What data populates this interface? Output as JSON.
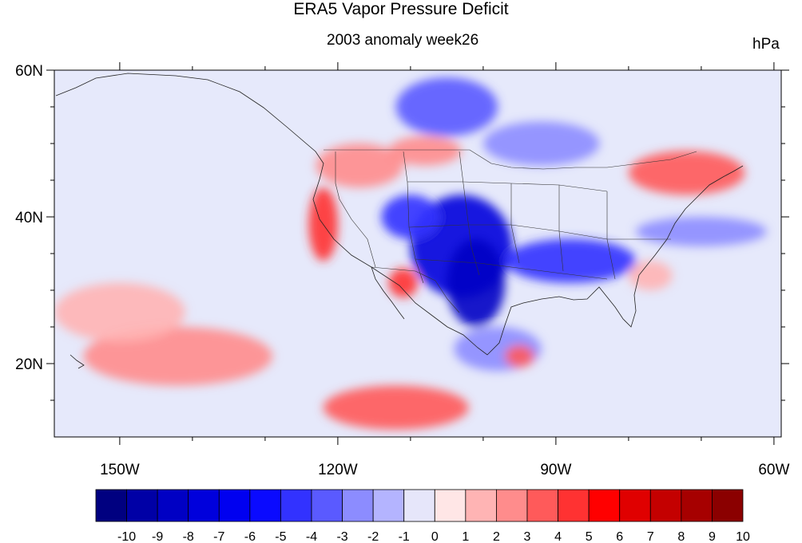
{
  "title": "ERA5 Vapor Pressure Deficit",
  "subtitle": "2003 anomaly week26",
  "units": "hPa",
  "map": {
    "lon_range": [
      -159,
      -59
    ],
    "lat_range": [
      10,
      60
    ],
    "lat_ticks": [
      {
        "value": 60,
        "label": "60N"
      },
      {
        "value": 40,
        "label": "40N"
      },
      {
        "value": 20,
        "label": "20N"
      }
    ],
    "lon_ticks": [
      {
        "value": -150,
        "label": "150W"
      },
      {
        "value": -120,
        "label": "120W"
      },
      {
        "value": -90,
        "label": "90W"
      },
      {
        "value": -60,
        "label": "60W"
      }
    ],
    "background_color": "#e6e9fb"
  },
  "colorbar": {
    "labels": [
      "-10",
      "-9",
      "-8",
      "-7",
      "-6",
      "-5",
      "-4",
      "-3",
      "-2",
      "-1",
      "0",
      "1",
      "2",
      "3",
      "4",
      "5",
      "6",
      "7",
      "8",
      "9",
      "10"
    ],
    "colors": [
      "#000080",
      "#0000a6",
      "#0000c4",
      "#0000dc",
      "#0000f0",
      "#0a0aff",
      "#3232ff",
      "#5a5aff",
      "#8c8cff",
      "#b4b4ff",
      "#e6e6fa",
      "#ffe6e6",
      "#ffb4b4",
      "#ff8c8c",
      "#ff5a5a",
      "#ff3232",
      "#ff0000",
      "#e00000",
      "#c40000",
      "#a60000",
      "#8b0000"
    ]
  },
  "anomaly_regions": [
    {
      "name": "Central US dry-negative core",
      "lon": -103,
      "lat": 36,
      "rx": 7,
      "ry": 7,
      "color": "#0000dc"
    },
    {
      "name": "Southern Plains negative",
      "lon": -101,
      "lat": 31,
      "rx": 4,
      "ry": 6,
      "color": "#0000c4"
    },
    {
      "name": "Southeast US negative",
      "lon": -88,
      "lat": 34,
      "rx": 9,
      "ry": 3,
      "color": "#3232ff"
    },
    {
      "name": "Great Basin negative",
      "lon": -110,
      "lat": 40,
      "rx": 4,
      "ry": 3,
      "color": "#3232ff"
    },
    {
      "name": "Canada negative",
      "lon": -105,
      "lat": 55,
      "rx": 7,
      "ry": 4,
      "color": "#5a5aff"
    },
    {
      "name": "Northeast Canada negative",
      "lon": -92,
      "lat": 50,
      "rx": 8,
      "ry": 3,
      "color": "#8c8cff"
    },
    {
      "name": "Mexico negative",
      "lon": -98,
      "lat": 22,
      "rx": 6,
      "ry": 3,
      "color": "#8c8cff"
    },
    {
      "name": "Atlantic negative",
      "lon": -70,
      "lat": 38,
      "rx": 9,
      "ry": 2,
      "color": "#8c8cff"
    },
    {
      "name": "California coast positive",
      "lon": -122,
      "lat": 39,
      "rx": 2,
      "ry": 5,
      "color": "#ff3232"
    },
    {
      "name": "Arizona positive",
      "lon": -111,
      "lat": 31,
      "rx": 2,
      "ry": 2,
      "color": "#ff3232"
    },
    {
      "name": "Pacific NW positive",
      "lon": -117,
      "lat": 47,
      "rx": 6,
      "ry": 3,
      "color": "#ff8c8c"
    },
    {
      "name": "Canadian Rockies positive",
      "lon": -108,
      "lat": 49,
      "rx": 5,
      "ry": 2,
      "color": "#ff8c8c"
    },
    {
      "name": "New England positive",
      "lon": -72,
      "lat": 46,
      "rx": 8,
      "ry": 3,
      "color": "#ff5a5a"
    },
    {
      "name": "Eastern Pacific positive",
      "lon": -112,
      "lat": 14,
      "rx": 10,
      "ry": 3,
      "color": "#ff5a5a"
    },
    {
      "name": "Central Pacific positive",
      "lon": -142,
      "lat": 21,
      "rx": 13,
      "ry": 4,
      "color": "#ff8c8c"
    },
    {
      "name": "Subtropical Pacific positive",
      "lon": -150,
      "lat": 27,
      "rx": 9,
      "ry": 4,
      "color": "#ffb4b4"
    },
    {
      "name": "Gulf of Mexico positive",
      "lon": -95,
      "lat": 21,
      "rx": 2,
      "ry": 1.5,
      "color": "#ff5a5a"
    },
    {
      "name": "Florida Atlantic positive",
      "lon": -77,
      "lat": 32,
      "rx": 3,
      "ry": 2,
      "color": "#ffb4b4"
    }
  ]
}
